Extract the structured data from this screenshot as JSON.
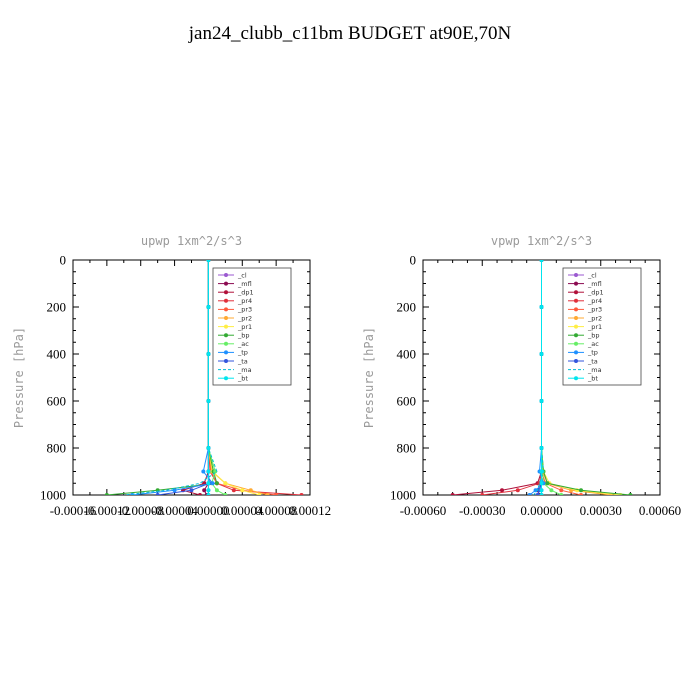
{
  "figure": {
    "title": "jan24_clubb_c11bm  BUDGET at90E,70N"
  },
  "colors": {
    "_cl": "#9b59d0",
    "_mfl": "#8b0a50",
    "_dp1": "#b0103a",
    "_pr4": "#e0303c",
    "_pr3": "#ff5a3c",
    "_pr2": "#ffaa33",
    "_pr1": "#ffee44",
    "_bp": "#33aa33",
    "_ac": "#66ee66",
    "_tp": "#1e90ff",
    "_ta": "#3355dd",
    "_ma": "#00bcd4",
    "_bt": "#00e5ee"
  },
  "chart_data": [
    {
      "type": "line",
      "title": "upwp   1xm^2/s^3",
      "ylabel": "Pressure [hPa]",
      "xlabel": "",
      "ylim": [
        1000,
        0
      ],
      "xlim": [
        -0.00016,
        0.00012
      ],
      "xticks": [
        -0.00016,
        -0.00012,
        -8e-05,
        -4e-05,
        0.0,
        4e-05,
        8e-05,
        0.00012
      ],
      "xtick_labels": [
        "-0.00016",
        "-0.00012",
        "-0.00008",
        "-0.00004",
        "0.00000",
        "0.00004",
        "0.00008",
        "0.00012"
      ],
      "yticks": [
        0,
        200,
        400,
        600,
        800,
        1000
      ],
      "ytick_labels": [
        "0",
        "200",
        "400",
        "600",
        "800",
        "1000"
      ],
      "legend": [
        "_cl",
        "_mfl",
        "_dp1",
        "_pr4",
        "_pr3",
        "_pr2",
        "_pr1",
        "_bp",
        "_ac",
        "_tp",
        "_ta",
        "_ma",
        "_bt"
      ],
      "legend_position": "top-right",
      "series": [
        {
          "name": "_cl",
          "x": [
            0,
            0,
            0,
            0,
            0,
            0,
            0,
            0,
            0
          ],
          "y": [
            0,
            200,
            400,
            600,
            800,
            900,
            950,
            980,
            1000
          ]
        },
        {
          "name": "_mfl",
          "x": [
            0,
            0,
            0,
            0,
            0,
            0,
            0,
            -5e-06,
            -2e-06
          ],
          "y": [
            0,
            200,
            400,
            600,
            800,
            900,
            950,
            980,
            1000
          ]
        },
        {
          "name": "_dp1",
          "x": [
            0,
            0,
            0,
            0,
            0,
            0,
            -5e-06,
            -3e-05,
            -1e-05
          ],
          "y": [
            0,
            200,
            400,
            600,
            800,
            900,
            950,
            980,
            1000
          ]
        },
        {
          "name": "_pr4",
          "x": [
            0,
            0,
            0,
            0,
            0,
            2e-06,
            1e-05,
            3e-05,
            0.00011
          ],
          "y": [
            0,
            200,
            400,
            600,
            800,
            900,
            950,
            980,
            1000
          ]
        },
        {
          "name": "_pr3",
          "x": [
            0,
            0,
            0,
            0,
            0,
            3e-06,
            1e-05,
            4e-05,
            8e-05
          ],
          "y": [
            0,
            200,
            400,
            600,
            800,
            900,
            950,
            980,
            1000
          ]
        },
        {
          "name": "_pr2",
          "x": [
            0,
            0,
            0,
            0,
            0,
            4e-06,
            2e-05,
            5e-05,
            7e-05
          ],
          "y": [
            0,
            200,
            400,
            600,
            800,
            900,
            950,
            980,
            1000
          ]
        },
        {
          "name": "_pr1",
          "x": [
            0,
            0,
            0,
            0,
            0,
            5e-06,
            2e-05,
            4e-05,
            6e-05
          ],
          "y": [
            0,
            200,
            400,
            600,
            800,
            900,
            950,
            980,
            1000
          ]
        },
        {
          "name": "_bp",
          "x": [
            0,
            0,
            0,
            0,
            0,
            6e-06,
            1e-05,
            -6e-05,
            -0.00012
          ],
          "y": [
            0,
            200,
            400,
            600,
            800,
            900,
            950,
            980,
            1000
          ]
        },
        {
          "name": "_ac",
          "x": [
            0,
            0,
            0,
            0,
            0,
            8e-06,
            4e-06,
            1e-05,
            2e-05
          ],
          "y": [
            0,
            200,
            400,
            600,
            800,
            900,
            950,
            980,
            1000
          ]
        },
        {
          "name": "_tp",
          "x": [
            0,
            0,
            0,
            0,
            0,
            -6e-06,
            5e-06,
            -4e-05,
            -9e-05
          ],
          "y": [
            0,
            200,
            400,
            600,
            800,
            900,
            950,
            980,
            1000
          ]
        },
        {
          "name": "_ta",
          "x": [
            0,
            0,
            0,
            0,
            0,
            0,
            1e-06,
            -2e-05,
            -6e-05
          ],
          "y": [
            0,
            200,
            400,
            600,
            800,
            900,
            950,
            980,
            1000
          ]
        },
        {
          "name": "_ma",
          "x": [
            0,
            0,
            0,
            0,
            0,
            1e-05,
            -1e-05,
            -5e-05,
            -0.0001
          ],
          "y": [
            0,
            200,
            400,
            600,
            800,
            900,
            950,
            980,
            1000
          ]
        },
        {
          "name": "_bt",
          "x": [
            0,
            0,
            0,
            0,
            0,
            0,
            0,
            0,
            0
          ],
          "y": [
            0,
            200,
            400,
            600,
            800,
            900,
            950,
            980,
            1000
          ]
        }
      ]
    },
    {
      "type": "line",
      "title": "vpwp   1xm^2/s^3",
      "ylabel": "Pressure [hPa]",
      "xlabel": "",
      "ylim": [
        1000,
        0
      ],
      "xlim": [
        -0.0006,
        0.0006
      ],
      "xticks": [
        -0.0006,
        -0.0003,
        0.0,
        0.0003,
        0.0006
      ],
      "xtick_labels": [
        "-0.00060",
        "-0.00030",
        "0.00000",
        "0.00030",
        "0.00060"
      ],
      "yticks": [
        0,
        200,
        400,
        600,
        800,
        1000
      ],
      "ytick_labels": [
        "0",
        "200",
        "400",
        "600",
        "800",
        "1000"
      ],
      "legend": [
        "_cl",
        "_mfl",
        "_dp1",
        "_pr4",
        "_pr3",
        "_pr2",
        "_pr1",
        "_bp",
        "_ac",
        "_tp",
        "_ta",
        "_ma",
        "_bt"
      ],
      "legend_position": "top-right",
      "series": [
        {
          "name": "_cl",
          "x": [
            0,
            0,
            0,
            0,
            0,
            0,
            0,
            0,
            0
          ],
          "y": [
            0,
            200,
            400,
            600,
            800,
            900,
            950,
            980,
            1000
          ]
        },
        {
          "name": "_mfl",
          "x": [
            0,
            0,
            0,
            0,
            0,
            0,
            0,
            -2e-05,
            -1e-05
          ],
          "y": [
            0,
            200,
            400,
            600,
            800,
            900,
            950,
            980,
            1000
          ]
        },
        {
          "name": "_dp1",
          "x": [
            0,
            0,
            0,
            0,
            0,
            0,
            -2e-05,
            -0.0002,
            -0.00045
          ],
          "y": [
            0,
            200,
            400,
            600,
            800,
            900,
            950,
            980,
            1000
          ]
        },
        {
          "name": "_pr4",
          "x": [
            0,
            0,
            0,
            0,
            0,
            0,
            -1e-05,
            -0.00012,
            -0.0003
          ],
          "y": [
            0,
            200,
            400,
            600,
            800,
            900,
            950,
            980,
            1000
          ]
        },
        {
          "name": "_pr3",
          "x": [
            0,
            0,
            0,
            0,
            0,
            0,
            2e-05,
            0.0001,
            0.0002
          ],
          "y": [
            0,
            200,
            400,
            600,
            800,
            900,
            950,
            980,
            1000
          ]
        },
        {
          "name": "_pr2",
          "x": [
            0,
            0,
            0,
            0,
            0,
            5e-06,
            3e-05,
            0.00015,
            0.00035
          ],
          "y": [
            0,
            200,
            400,
            600,
            800,
            900,
            950,
            980,
            1000
          ]
        },
        {
          "name": "_pr1",
          "x": [
            0,
            0,
            0,
            0,
            0,
            1e-05,
            4e-05,
            0.00018,
            0.0004
          ],
          "y": [
            0,
            200,
            400,
            600,
            800,
            900,
            950,
            980,
            1000
          ]
        },
        {
          "name": "_bp",
          "x": [
            0,
            0,
            0,
            0,
            0,
            1e-05,
            3e-05,
            0.0002,
            0.00045
          ],
          "y": [
            0,
            200,
            400,
            600,
            800,
            900,
            950,
            980,
            1000
          ]
        },
        {
          "name": "_ac",
          "x": [
            0,
            0,
            0,
            0,
            0,
            5e-06,
            1e-05,
            5e-05,
            0.0001
          ],
          "y": [
            0,
            200,
            400,
            600,
            800,
            900,
            950,
            980,
            1000
          ]
        },
        {
          "name": "_tp",
          "x": [
            0,
            0,
            0,
            0,
            0,
            -1e-05,
            1e-05,
            -3e-05,
            -6e-05
          ],
          "y": [
            0,
            200,
            400,
            600,
            800,
            900,
            950,
            980,
            1000
          ]
        },
        {
          "name": "_ta",
          "x": [
            0,
            0,
            0,
            0,
            0,
            0,
            0,
            -1e-05,
            -2e-05
          ],
          "y": [
            0,
            200,
            400,
            600,
            800,
            900,
            950,
            980,
            1000
          ]
        },
        {
          "name": "_ma",
          "x": [
            0,
            0,
            0,
            0,
            0,
            1e-05,
            -1e-05,
            -2e-05,
            -4e-05
          ],
          "y": [
            0,
            200,
            400,
            600,
            800,
            900,
            950,
            980,
            1000
          ]
        },
        {
          "name": "_bt",
          "x": [
            0,
            0,
            0,
            0,
            0,
            0,
            0,
            0,
            0
          ],
          "y": [
            0,
            200,
            400,
            600,
            800,
            900,
            950,
            980,
            1000
          ]
        }
      ]
    }
  ]
}
